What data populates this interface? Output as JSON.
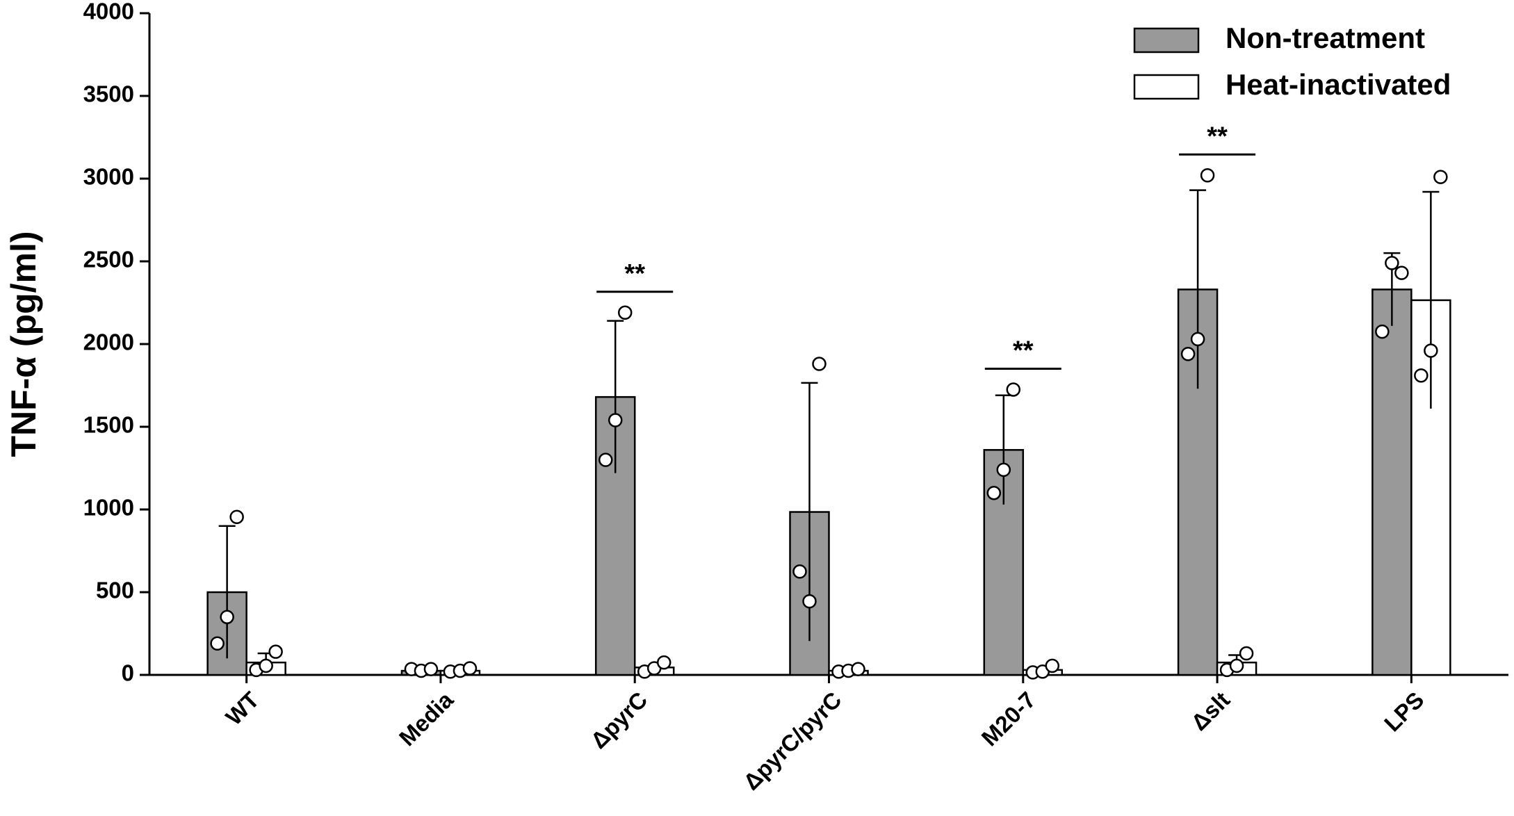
{
  "chart_data": {
    "type": "bar",
    "y_label": "TNF-α (pg/ml)",
    "categories": [
      "WT",
      "Media",
      "ΔpyrC",
      "ΔpyrC/pyrC",
      "M20-7",
      "Δslt",
      "LPS"
    ],
    "series": [
      {
        "name": "Non-treatment",
        "color": "#999999",
        "values": [
          500,
          25,
          1680,
          985,
          1360,
          2330,
          2330
        ],
        "errors": [
          400,
          0,
          460,
          780,
          330,
          600,
          220
        ],
        "points": [
          [
            190,
            350,
            955
          ],
          [
            35,
            25,
            35
          ],
          [
            1300,
            1540,
            2190
          ],
          [
            625,
            445,
            1880
          ],
          [
            1100,
            1240,
            1725
          ],
          [
            1940,
            2030,
            3020
          ],
          [
            2075,
            2490,
            2430
          ]
        ]
      },
      {
        "name": "Heat-inactivated",
        "color": "#ffffff",
        "values": [
          75,
          25,
          45,
          25,
          30,
          75,
          2265
        ],
        "errors": [
          55,
          0,
          0,
          0,
          0,
          45,
          655
        ],
        "points": [
          [
            30,
            55,
            140
          ],
          [
            20,
            25,
            40
          ],
          [
            20,
            40,
            75
          ],
          [
            20,
            25,
            35
          ],
          [
            15,
            20,
            55
          ],
          [
            30,
            55,
            130
          ],
          [
            1810,
            1960,
            3010
          ]
        ]
      }
    ],
    "significance": [
      null,
      null,
      "**",
      null,
      "**",
      "**",
      null
    ],
    "ylim": [
      0,
      4000
    ],
    "yticks": [
      0,
      500,
      1000,
      1500,
      2000,
      2500,
      3000,
      3500,
      4000
    ],
    "legend": "top-right"
  }
}
